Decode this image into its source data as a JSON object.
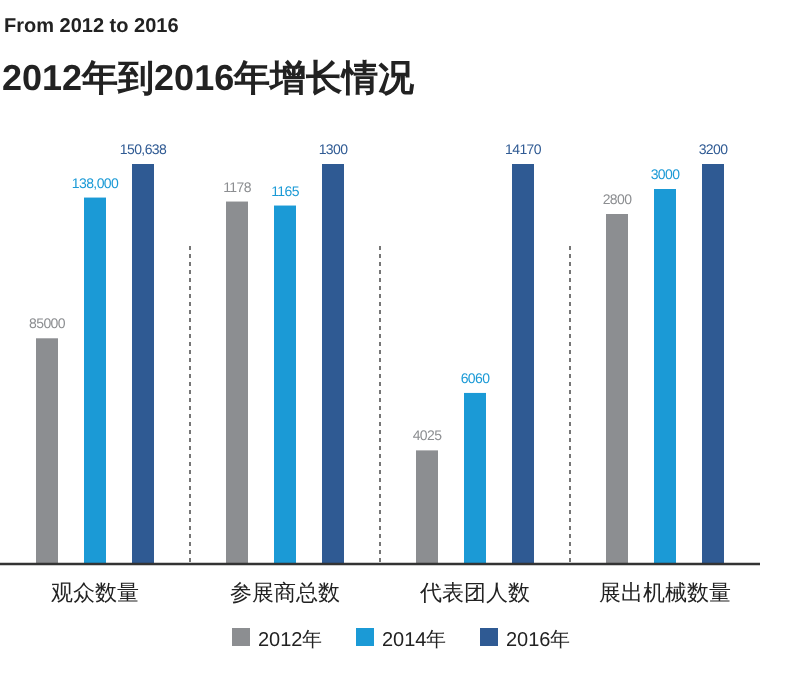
{
  "chart_data": [
    {
      "type": "bar",
      "subtitle": "From 2012 to 2016",
      "title": "2012年到2016年增长情况",
      "categories": [
        "观众数量"
      ],
      "tick_labels": "x",
      "legend": "bottom",
      "series": [
        {
          "name": "2012年",
          "color": "#8c8e91",
          "values": [
            85000
          ],
          "value_labels": [
            "85000"
          ]
        },
        {
          "name": "2014年",
          "color": "#1b9ad6",
          "values": [
            138000
          ],
          "value_labels": [
            "138,000"
          ]
        },
        {
          "name": "2016年",
          "color": "#2f5a93",
          "values": [
            150638
          ],
          "value_labels": [
            "150,638"
          ]
        }
      ]
    },
    {
      "type": "bar",
      "categories": [
        "参展商总数"
      ],
      "tick_labels": "x",
      "series": [
        {
          "color": "#8c8e91",
          "values": [
            1178
          ],
          "value_labels": [
            "1178"
          ]
        },
        {
          "color": "#1b9ad6",
          "values": [
            1165
          ],
          "value_labels": [
            "1165"
          ]
        },
        {
          "color": "#2f5a93",
          "values": [
            1300
          ],
          "value_labels": [
            "1300"
          ]
        }
      ]
    },
    {
      "type": "bar",
      "categories": [
        "代表团人数"
      ],
      "tick_labels": "x",
      "series": [
        {
          "color": "#8c8e91",
          "values": [
            4025
          ],
          "value_labels": [
            "4025"
          ]
        },
        {
          "color": "#1b9ad6",
          "values": [
            6060
          ],
          "value_labels": [
            "6060"
          ]
        },
        {
          "color": "#2f5a93",
          "values": [
            14170
          ],
          "value_labels": [
            "14170"
          ]
        }
      ]
    },
    {
      "type": "bar",
      "categories": [
        "展出机械数量"
      ],
      "tick_labels": "x",
      "series": [
        {
          "color": "#8c8e91",
          "values": [
            2800
          ],
          "value_labels": [
            "2800"
          ]
        },
        {
          "color": "#1b9ad6",
          "values": [
            3000
          ],
          "value_labels": [
            "3000"
          ]
        },
        {
          "color": "#2f5a93",
          "values": [
            3200
          ],
          "value_labels": [
            "3200"
          ]
        }
      ]
    }
  ]
}
